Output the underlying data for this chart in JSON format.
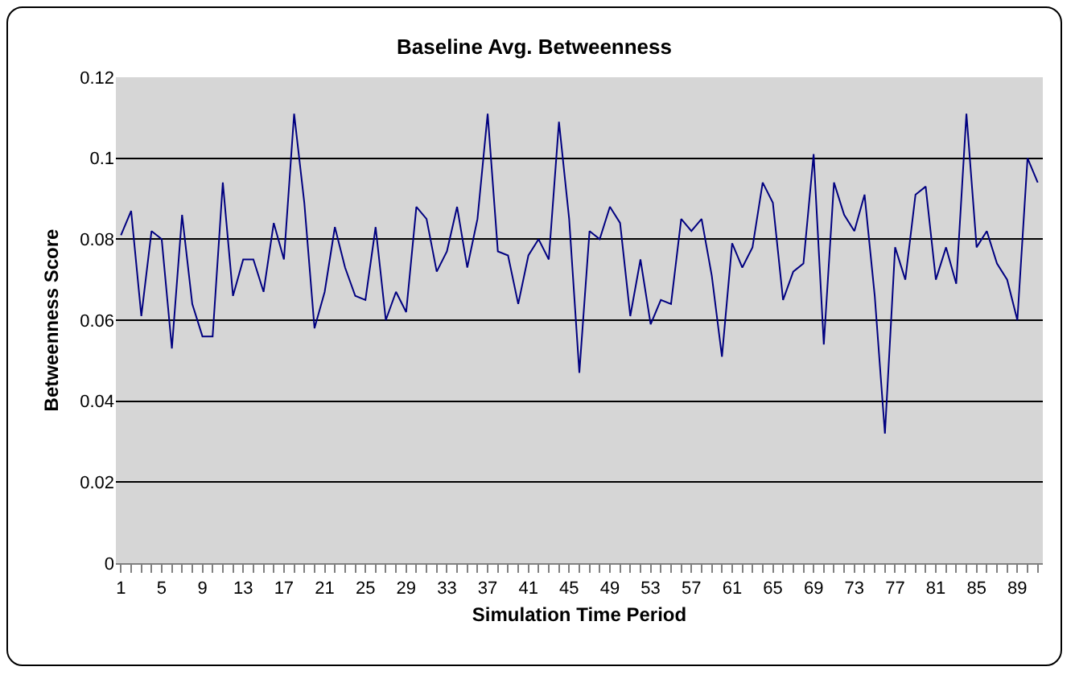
{
  "chart_data": {
    "type": "line",
    "title": "Baseline Avg. Betweenness",
    "xlabel": "Simulation Time Period",
    "ylabel": "Betweenness Score",
    "categories": [
      "1",
      null,
      null,
      null,
      "5",
      null,
      null,
      null,
      "9",
      null,
      null,
      null,
      "13",
      null,
      null,
      null,
      "17",
      null,
      null,
      null,
      "21",
      null,
      null,
      null,
      "25",
      null,
      null,
      null,
      "29",
      null,
      null,
      null,
      "33",
      null,
      null,
      null,
      "37",
      null,
      null,
      null,
      "41",
      null,
      null,
      null,
      "45",
      null,
      null,
      null,
      "49",
      null,
      null,
      null,
      "53",
      null,
      null,
      null,
      "57",
      null,
      null,
      null,
      "61",
      null,
      null,
      null,
      "65",
      null,
      null,
      null,
      "69",
      null,
      null,
      null,
      "73",
      null,
      null,
      null,
      "77",
      null,
      null,
      null,
      "81",
      null,
      null,
      null,
      "85",
      null,
      null,
      null,
      "89",
      null,
      null
    ],
    "series": [
      {
        "color": "#000080",
        "values": [
          0.081,
          0.087,
          0.061,
          0.082,
          0.08,
          0.053,
          0.086,
          0.064,
          0.056,
          0.056,
          0.094,
          0.066,
          0.075,
          0.075,
          0.067,
          0.084,
          0.075,
          0.111,
          0.089,
          0.058,
          0.067,
          0.083,
          0.073,
          0.066,
          0.065,
          0.083,
          0.06,
          0.067,
          0.062,
          0.088,
          0.085,
          0.072,
          0.077,
          0.088,
          0.073,
          0.085,
          0.111,
          0.077,
          0.076,
          0.064,
          0.076,
          0.08,
          0.075,
          0.109,
          0.085,
          0.047,
          0.082,
          0.08,
          0.088,
          0.084,
          0.061,
          0.075,
          0.059,
          0.065,
          0.064,
          0.085,
          0.082,
          0.085,
          0.071,
          0.051,
          0.079,
          0.073,
          0.078,
          0.094,
          0.089,
          0.065,
          0.072,
          0.074,
          0.101,
          0.054,
          0.094,
          0.086,
          0.082,
          0.091,
          0.066,
          0.032,
          0.078,
          0.07,
          0.091,
          0.093,
          0.07,
          0.078,
          0.069,
          0.111,
          0.078,
          0.082,
          0.074,
          0.07,
          0.06,
          0.1,
          0.094
        ]
      }
    ],
    "ylim": [
      0,
      0.12
    ],
    "yticks": [
      0,
      0.02,
      0.04,
      0.06,
      0.08,
      0.1,
      0.12
    ],
    "grid": "y",
    "marker": "none",
    "line_style": "solid"
  }
}
